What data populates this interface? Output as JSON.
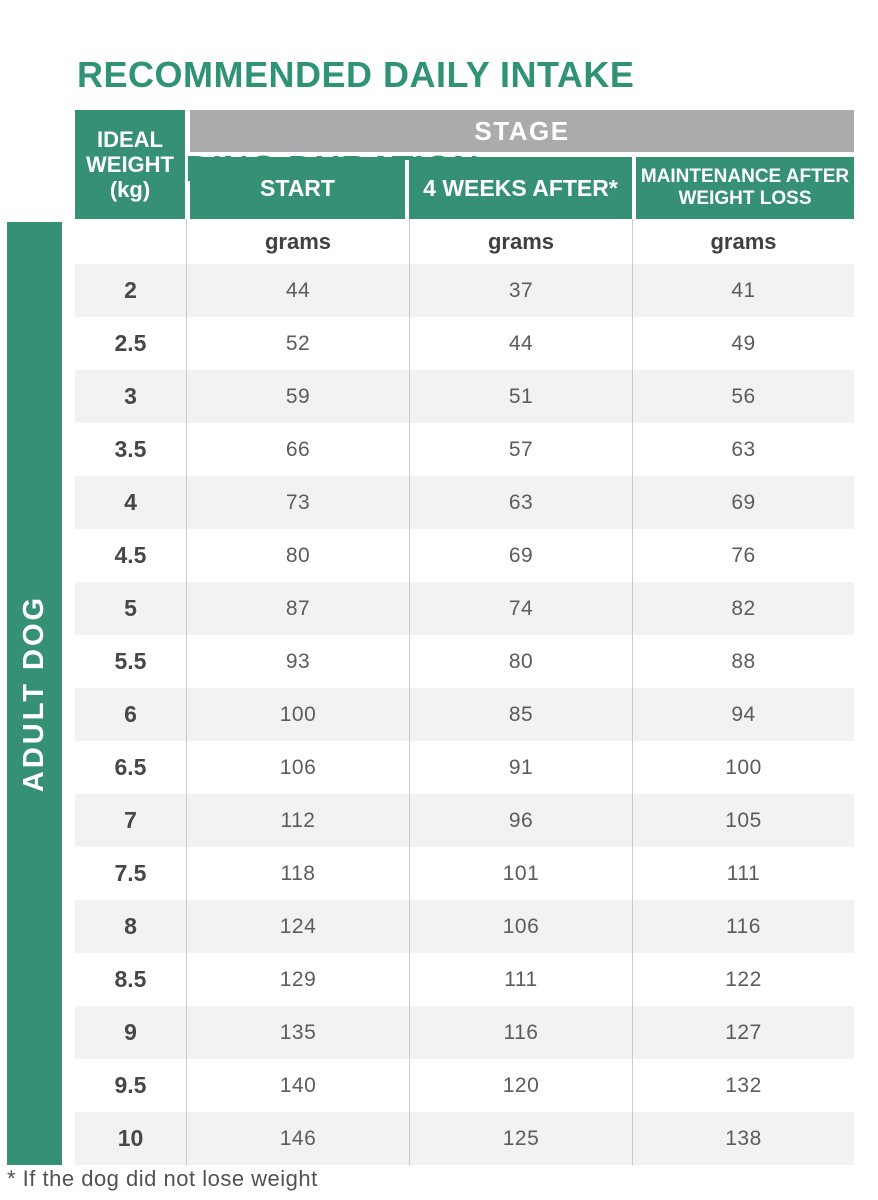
{
  "title": {
    "lines": [
      "RECOMMENDED DAILY INTAKE",
      "& FEEDING DURATION"
    ]
  },
  "side_label": "ADULT DOG",
  "table": {
    "corner_header_lines": [
      "IDEAL",
      "WEIGHT",
      "(kg)"
    ],
    "stage_label": "STAGE",
    "column_headers": [
      "START",
      "4 WEEKS AFTER*",
      "MAINTENANCE AFTER WEIGHT LOSS"
    ],
    "units": [
      "grams",
      "grams",
      "grams"
    ],
    "rows": [
      {
        "weight": "2",
        "values": [
          "44",
          "37",
          "41"
        ]
      },
      {
        "weight": "2.5",
        "values": [
          "52",
          "44",
          "49"
        ]
      },
      {
        "weight": "3",
        "values": [
          "59",
          "51",
          "56"
        ]
      },
      {
        "weight": "3.5",
        "values": [
          "66",
          "57",
          "63"
        ]
      },
      {
        "weight": "4",
        "values": [
          "73",
          "63",
          "69"
        ]
      },
      {
        "weight": "4.5",
        "values": [
          "80",
          "69",
          "76"
        ]
      },
      {
        "weight": "5",
        "values": [
          "87",
          "74",
          "82"
        ]
      },
      {
        "weight": "5.5",
        "values": [
          "93",
          "80",
          "88"
        ]
      },
      {
        "weight": "6",
        "values": [
          "100",
          "85",
          "94"
        ]
      },
      {
        "weight": "6.5",
        "values": [
          "106",
          "91",
          "100"
        ]
      },
      {
        "weight": "7",
        "values": [
          "112",
          "96",
          "105"
        ]
      },
      {
        "weight": "7.5",
        "values": [
          "118",
          "101",
          "111"
        ]
      },
      {
        "weight": "8",
        "values": [
          "124",
          "106",
          "116"
        ]
      },
      {
        "weight": "8.5",
        "values": [
          "129",
          "111",
          "122"
        ]
      },
      {
        "weight": "9",
        "values": [
          "135",
          "116",
          "127"
        ]
      },
      {
        "weight": "9.5",
        "values": [
          "140",
          "120",
          "132"
        ]
      },
      {
        "weight": "10",
        "values": [
          "146",
          "125",
          "138"
        ]
      }
    ]
  },
  "footnote": "* If the dog did not lose weight",
  "colors": {
    "header_green": "#359076",
    "title_green": "#2F9374",
    "stage_gray": "#ABABAD",
    "row_shade": "#F2F2F2",
    "separator_line": "#CBCBCB",
    "weight_text": "#474747",
    "value_text": "#5B5C5E"
  }
}
